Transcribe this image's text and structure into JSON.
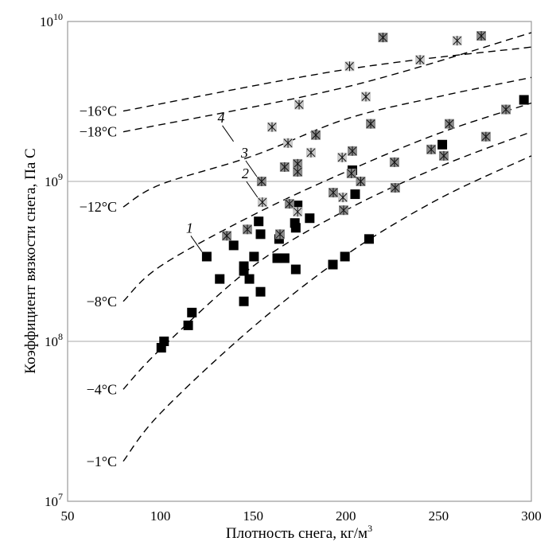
{
  "chart_data": {
    "type": "scatter",
    "title": "",
    "xlabel": "Плотность снега, кг/м",
    "xlabel_sup": "3",
    "ylabel": "Коэффициент вязкости снега, Па С",
    "xlim": [
      50,
      300
    ],
    "ylim": [
      10000000.0,
      10000000000.0
    ],
    "yscale": "log",
    "grid": "horizontal at 10^8 and 10^9",
    "x_ticks": [
      "50",
      "100",
      "150",
      "200",
      "250",
      "300"
    ],
    "y_ticks": [
      {
        "base": "10",
        "exp": "7",
        "log": 7
      },
      {
        "base": "10",
        "exp": "8",
        "log": 8
      },
      {
        "base": "10",
        "exp": "9",
        "log": 9
      },
      {
        "base": "10",
        "exp": "10",
        "log": 10
      }
    ],
    "colors": {
      "black_square": "#000000",
      "gray_box": "#8a8a8a",
      "light_box": "#c8c8c8",
      "curve": "#000000",
      "grid": "#aaaaaa"
    },
    "curves": [
      {
        "label": "−18°C",
        "x": [
          80,
          200,
          300
        ],
        "log10y": [
          9.31,
          9.59,
          9.93
        ]
      },
      {
        "label": "−16°C",
        "x": [
          80,
          200,
          300
        ],
        "log10y": [
          9.44,
          9.7,
          9.84
        ]
      },
      {
        "label": "−12°C",
        "x": [
          80,
          100,
          150,
          200,
          250,
          300
        ],
        "log10y": [
          8.84,
          8.98,
          9.16,
          9.39,
          9.53,
          9.65
        ]
      },
      {
        "label": "−8°C",
        "x": [
          80,
          100,
          150,
          200,
          250,
          300
        ],
        "log10y": [
          8.25,
          8.47,
          8.79,
          9.06,
          9.3,
          9.49
        ]
      },
      {
        "label": "−4°C",
        "x": [
          80,
          100,
          150,
          200,
          250,
          300
        ],
        "log10y": [
          7.7,
          7.95,
          8.47,
          8.82,
          9.09,
          9.31
        ]
      },
      {
        "label": "−1°C",
        "x": [
          80,
          100,
          150,
          200,
          250,
          300
        ],
        "log10y": [
          7.25,
          7.55,
          8.09,
          8.54,
          8.89,
          9.16
        ]
      }
    ],
    "series": [
      {
        "marker": "black-square",
        "points": [
          [
            296,
            9.51
          ],
          [
            252,
            9.23
          ],
          [
            203.5,
            9.07
          ],
          [
            205,
            8.92
          ],
          [
            174,
            8.85
          ],
          [
            180.5,
            8.77
          ],
          [
            153,
            8.75
          ],
          [
            154,
            8.67
          ],
          [
            172.5,
            8.74
          ],
          [
            173,
            8.71
          ],
          [
            164,
            8.64
          ],
          [
            125,
            8.53
          ],
          [
            139.5,
            8.6
          ],
          [
            150.5,
            8.53
          ],
          [
            145,
            8.47
          ],
          [
            145,
            8.44
          ],
          [
            163,
            8.52
          ],
          [
            167,
            8.52
          ],
          [
            173,
            8.45
          ],
          [
            132,
            8.39
          ],
          [
            148,
            8.39
          ],
          [
            154,
            8.31
          ],
          [
            145,
            8.25
          ],
          [
            212.5,
            8.64
          ],
          [
            199.5,
            8.53
          ],
          [
            193,
            8.48
          ],
          [
            117,
            8.18
          ],
          [
            115,
            8.1
          ],
          [
            102,
            8.0
          ],
          [
            100.5,
            7.96
          ]
        ]
      },
      {
        "marker": "gray-box-asterisk",
        "points": [
          [
            220,
            9.9
          ],
          [
            273,
            9.91
          ],
          [
            183.8,
            9.29
          ],
          [
            213.4,
            9.36
          ],
          [
            167,
            9.09
          ],
          [
            174,
            9.11
          ],
          [
            174,
            9.06
          ],
          [
            203.5,
            9.19
          ],
          [
            203,
            9.05
          ],
          [
            208,
            9.0
          ],
          [
            226.2,
            9.12
          ],
          [
            226.6,
            8.96
          ],
          [
            246,
            9.2
          ],
          [
            252.8,
            9.16
          ],
          [
            255.8,
            9.36
          ],
          [
            275.5,
            9.28
          ],
          [
            286.3,
            9.45
          ],
          [
            154.6,
            9.0
          ],
          [
            193.2,
            8.93
          ],
          [
            198.8,
            8.82
          ],
          [
            169.6,
            8.86
          ],
          [
            135.8,
            8.66
          ],
          [
            146.9,
            8.7
          ],
          [
            164.5,
            8.67
          ]
        ]
      },
      {
        "marker": "light-asterisk",
        "points": [
          [
            260,
            9.88
          ],
          [
            202,
            9.72
          ],
          [
            240,
            9.76
          ],
          [
            174.8,
            9.48
          ],
          [
            210.8,
            9.53
          ],
          [
            160.2,
            9.34
          ],
          [
            168.8,
            9.24
          ],
          [
            181.2,
            9.18
          ],
          [
            198,
            9.15
          ],
          [
            155,
            8.87
          ],
          [
            198.4,
            8.9
          ],
          [
            174,
            8.81
          ]
        ]
      }
    ],
    "annotations": [
      {
        "text": "1",
        "x": 125,
        "log10y": 8.53
      },
      {
        "text": "2",
        "x": 155,
        "log10y": 8.87
      },
      {
        "text": "3",
        "x": 154.6,
        "log10y": 9.0
      },
      {
        "text": "4",
        "x": 142,
        "log10y": 9.22
      }
    ]
  }
}
